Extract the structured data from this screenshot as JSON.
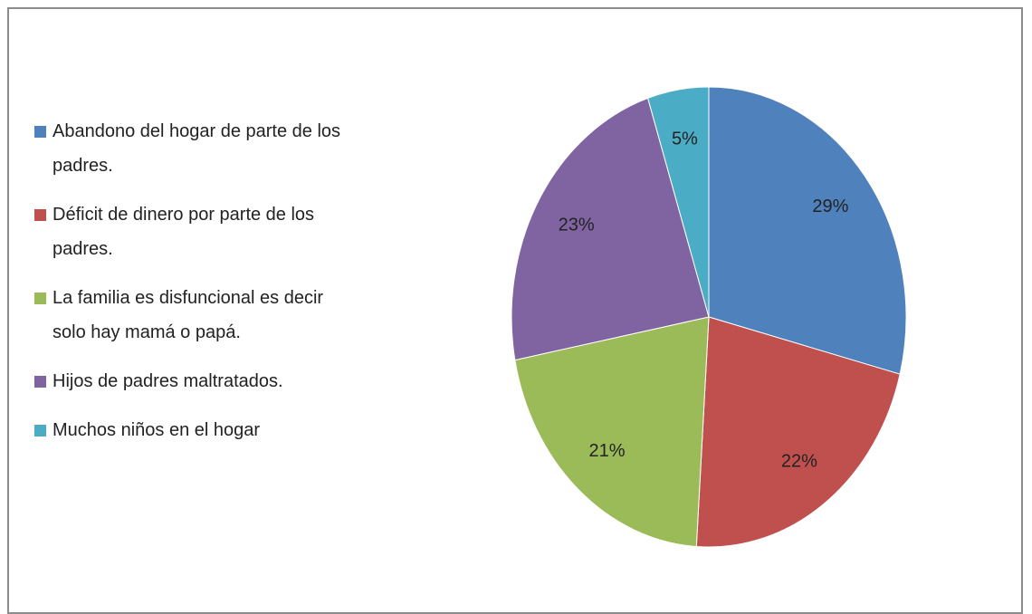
{
  "chart_data": {
    "type": "pie",
    "categories": [
      "Abandono del hogar de parte de los padres.",
      "Déficit de dinero por parte de los padres.",
      "La familia es disfuncional es decir solo hay mamá o papá.",
      "Hijos de padres maltratados.",
      "Muchos niños en el hogar"
    ],
    "values": [
      29,
      22,
      21,
      23,
      5
    ],
    "value_labels": [
      "29%",
      "22%",
      "21%",
      "23%",
      "5%"
    ],
    "colors": [
      "#4f81bd",
      "#c0504d",
      "#9bbb59",
      "#8064a2",
      "#4bacc6"
    ],
    "legend": "left"
  }
}
